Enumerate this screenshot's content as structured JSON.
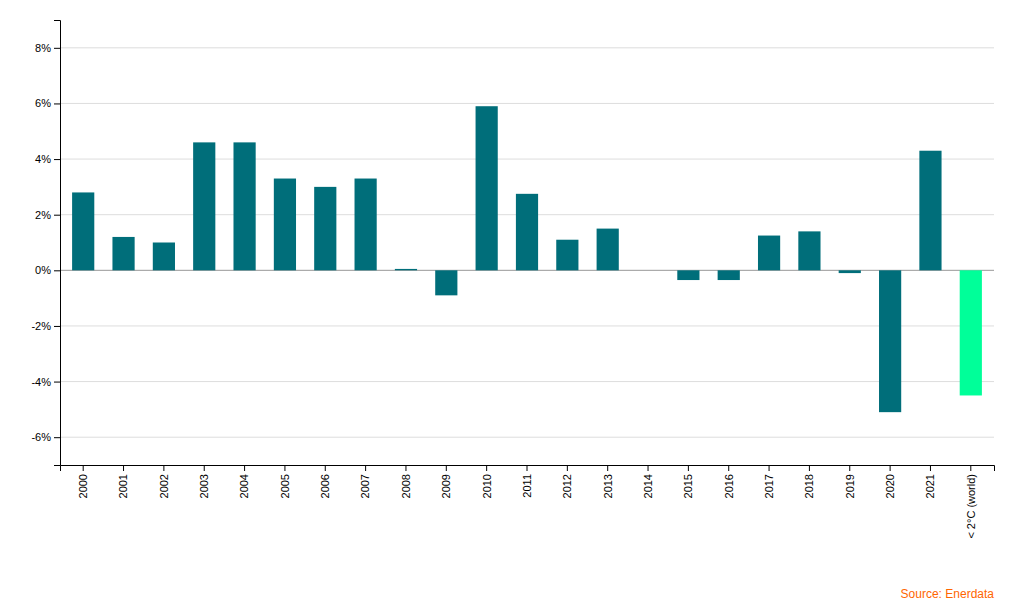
{
  "chart_data": {
    "type": "bar",
    "categories": [
      "2000",
      "2001",
      "2002",
      "2003",
      "2004",
      "2005",
      "2006",
      "2007",
      "2008",
      "2009",
      "2010",
      "2011",
      "2012",
      "2013",
      "2014",
      "2015",
      "2016",
      "2017",
      "2018",
      "2019",
      "2020",
      "2021",
      "< 2°C (world)"
    ],
    "values": [
      2.8,
      1.2,
      1.0,
      4.6,
      4.6,
      3.3,
      3.0,
      3.3,
      0.05,
      -0.9,
      5.9,
      2.75,
      1.1,
      1.5,
      0.0,
      -0.35,
      -0.35,
      1.25,
      1.4,
      -0.1,
      -5.1,
      4.3,
      -4.5
    ],
    "colors": [
      "#006e7a",
      "#006e7a",
      "#006e7a",
      "#006e7a",
      "#006e7a",
      "#006e7a",
      "#006e7a",
      "#006e7a",
      "#006e7a",
      "#006e7a",
      "#006e7a",
      "#006e7a",
      "#006e7a",
      "#006e7a",
      "#006e7a",
      "#006e7a",
      "#006e7a",
      "#006e7a",
      "#006e7a",
      "#006e7a",
      "#006e7a",
      "#006e7a",
      "#00ff99"
    ],
    "ylim": [
      -7,
      9
    ],
    "yticks": [
      {
        "value": -6,
        "label": "-6%"
      },
      {
        "value": -4,
        "label": "-4%"
      },
      {
        "value": -2,
        "label": "-2%"
      },
      {
        "value": 0,
        "label": "0%"
      },
      {
        "value": 2,
        "label": "2%"
      },
      {
        "value": 4,
        "label": "4%"
      },
      {
        "value": 6,
        "label": "6%"
      },
      {
        "value": 8,
        "label": "8%"
      }
    ],
    "grid": true,
    "annotations": [
      {
        "text": "Source: Enerdata",
        "color": "#ff6600"
      }
    ]
  }
}
